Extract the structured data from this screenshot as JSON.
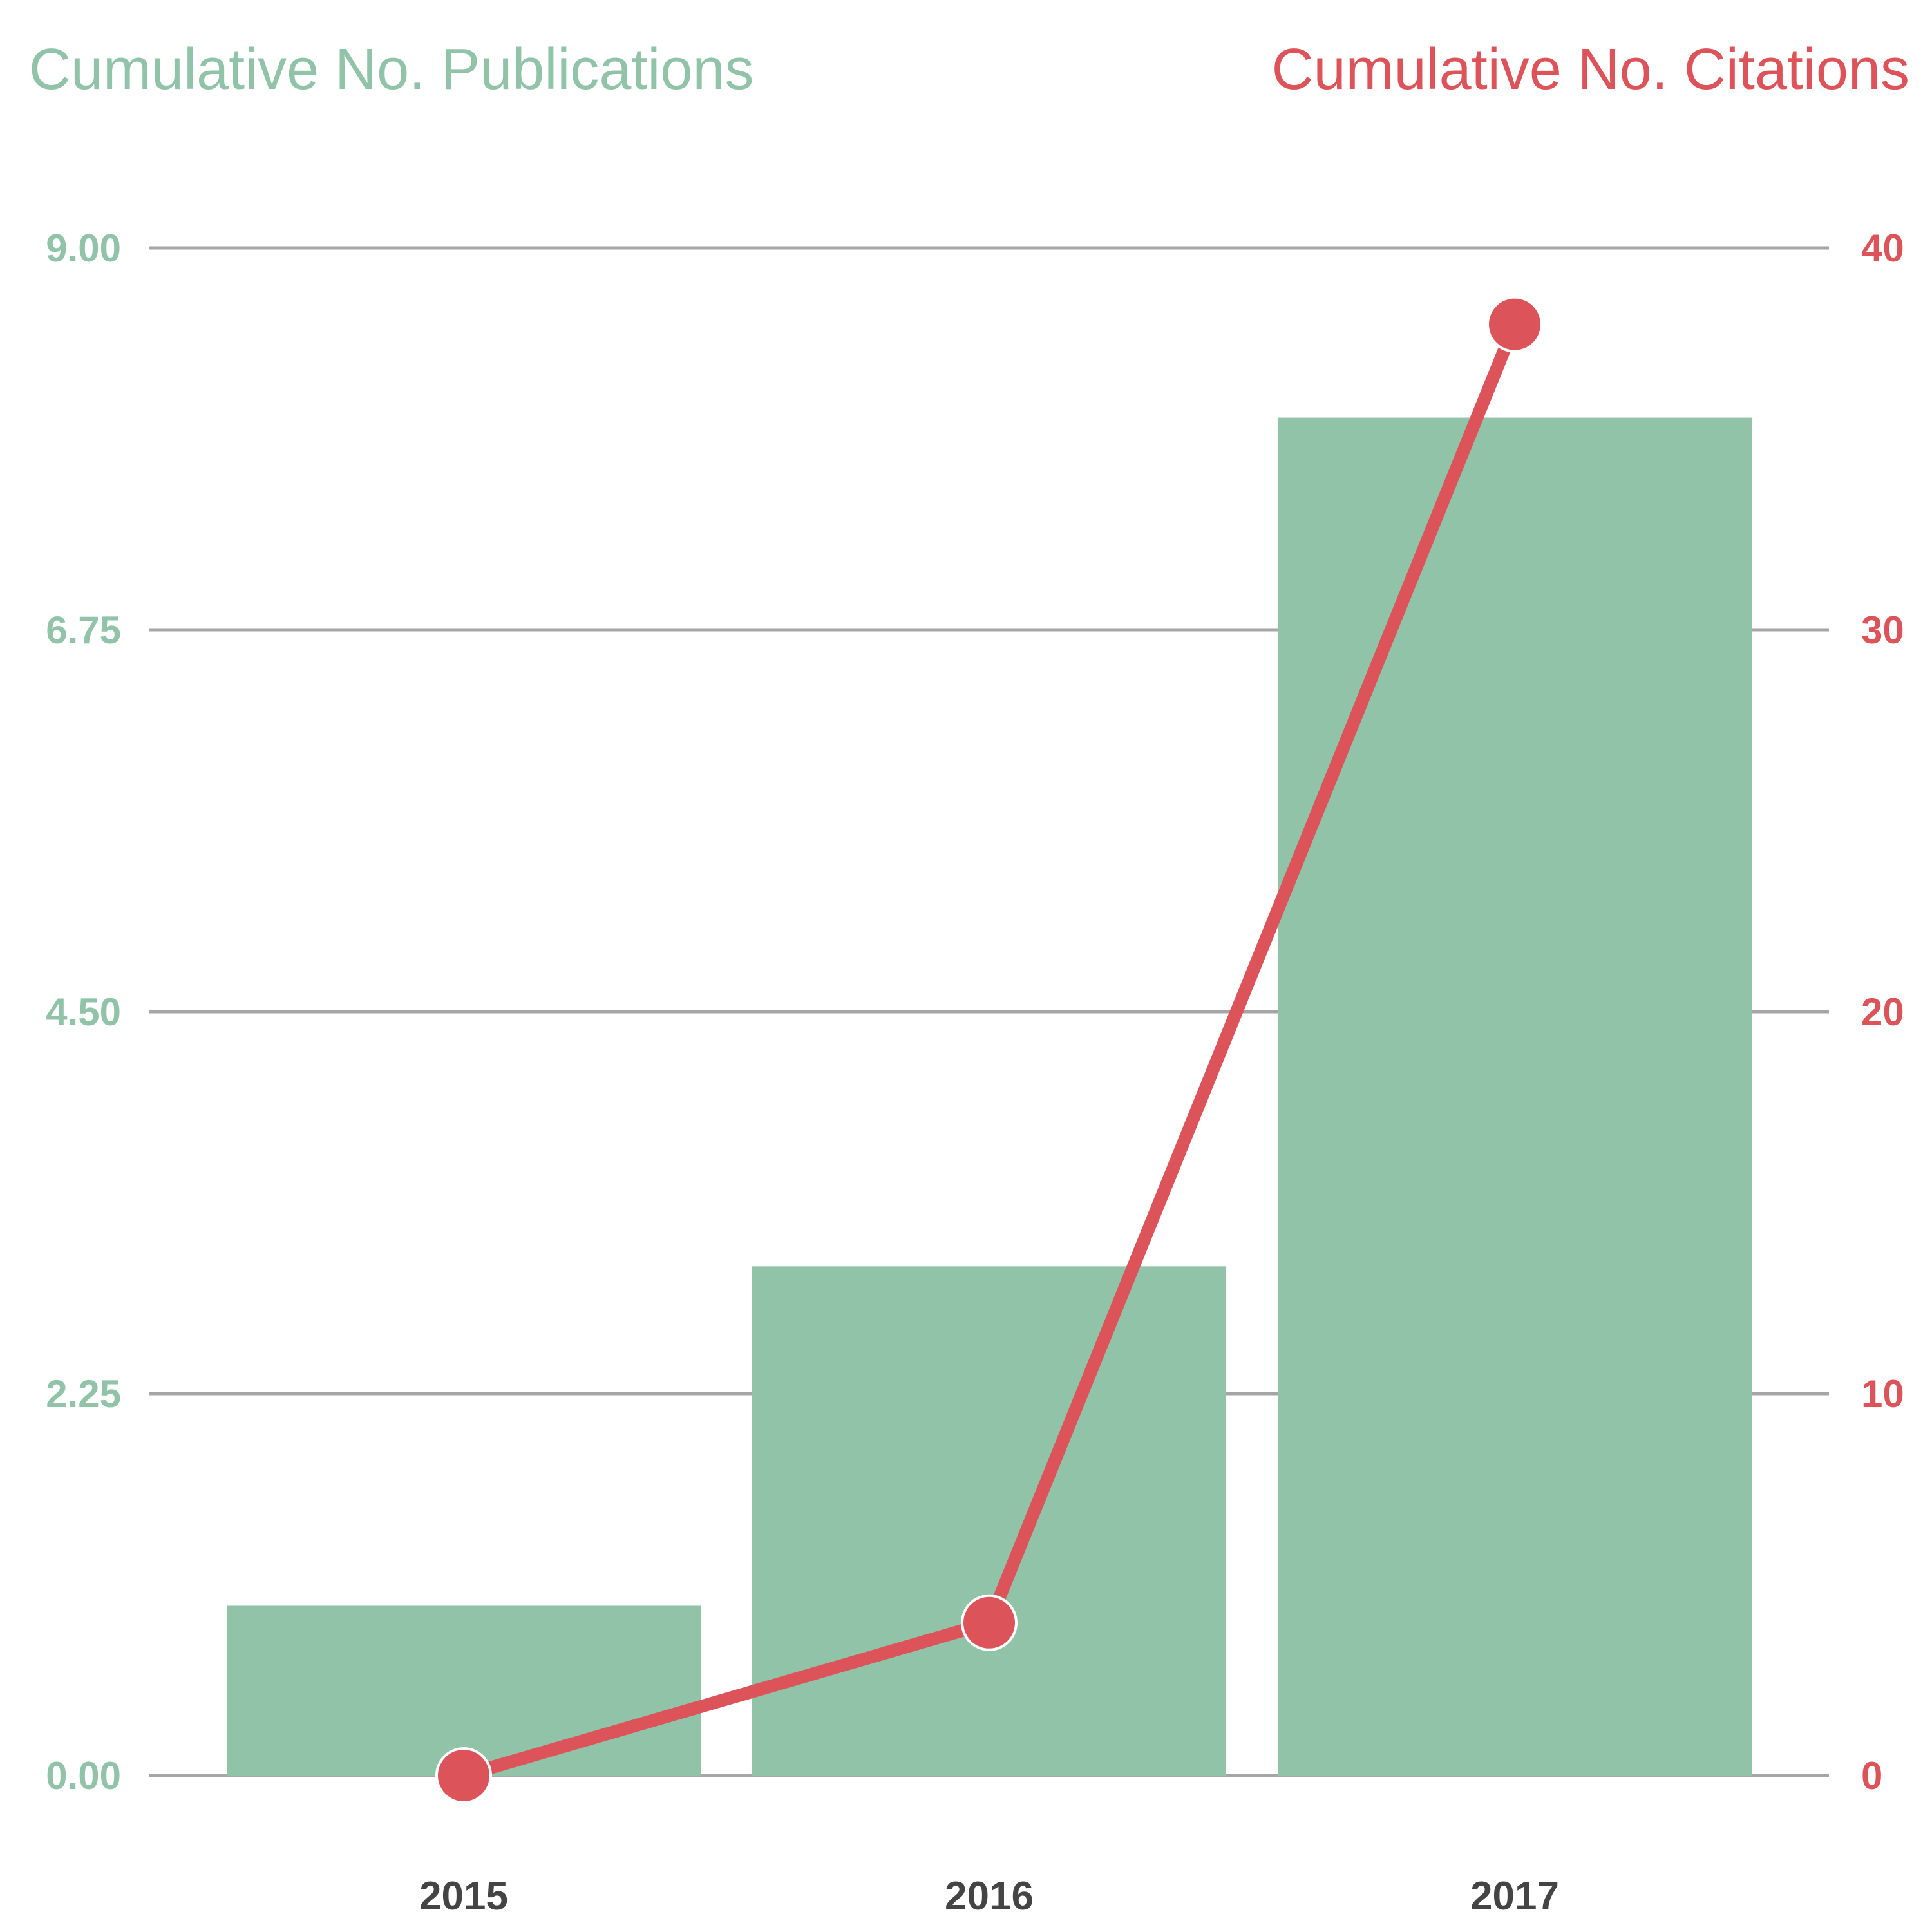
{
  "chart_data": {
    "type": "bar+line",
    "categories": [
      "2015",
      "2016",
      "2017"
    ],
    "series": [
      {
        "name": "Cumulative No. Publications",
        "type": "bar",
        "axis": "left",
        "values": [
          1,
          3,
          8
        ],
        "color": "#90c3a7"
      },
      {
        "name": "Cumulative No. Citations",
        "type": "line",
        "axis": "right",
        "values": [
          0,
          4,
          38
        ],
        "color": "#dc5459"
      }
    ],
    "left_axis": {
      "title": "Cumulative No. Publications",
      "ylim": [
        0,
        9
      ],
      "ticks": [
        "0.00",
        "2.25",
        "4.50",
        "6.75",
        "9.00"
      ],
      "tick_values": [
        0,
        2.25,
        4.5,
        6.75,
        9
      ],
      "color": "#90c3a7"
    },
    "right_axis": {
      "title": "Cumulative No. Citations",
      "ylim": [
        0,
        40
      ],
      "ticks": [
        "0",
        "10",
        "20",
        "30",
        "40"
      ],
      "tick_values": [
        0,
        10,
        20,
        30,
        40
      ],
      "color": "#dc5459"
    },
    "grid": true,
    "grid_color": "#a6a6a6",
    "xtick_color": "#444444"
  }
}
